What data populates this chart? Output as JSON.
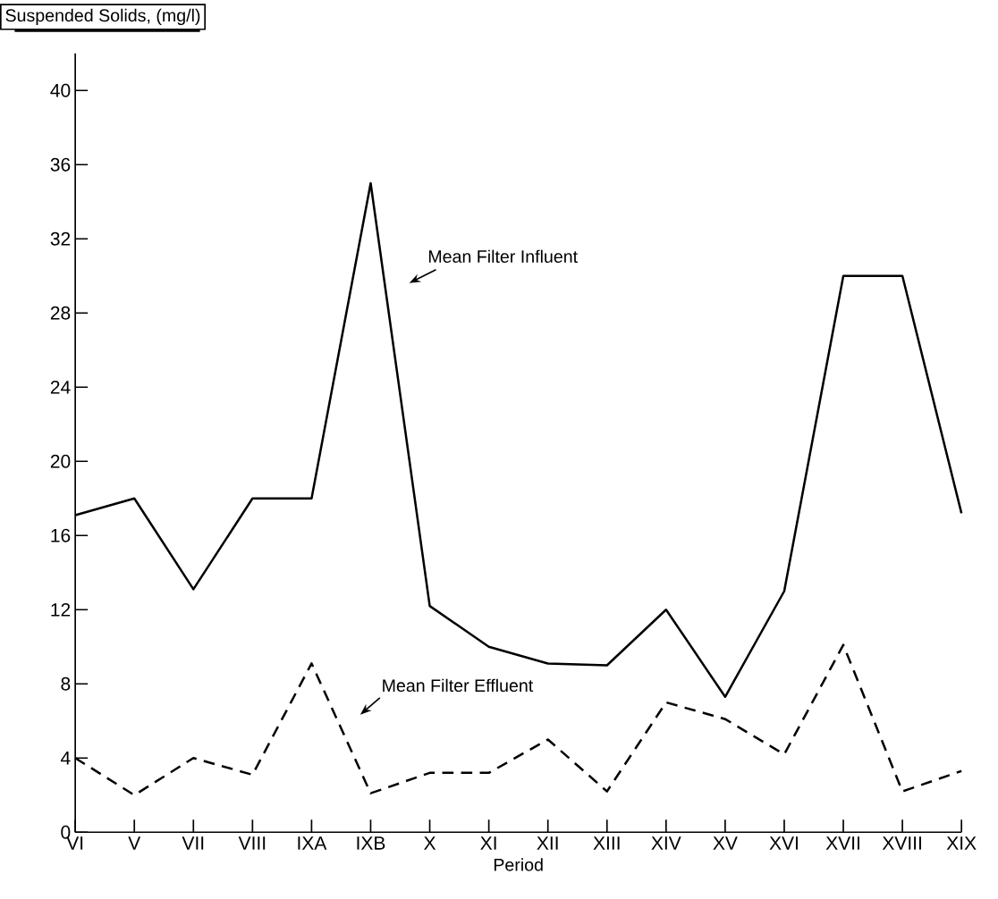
{
  "chart_data": {
    "type": "line",
    "ylabel": "Suspended Solids, (mg/l)",
    "xlabel": "Period",
    "categories": [
      "VI",
      "V",
      "VII",
      "VIII",
      "IXA",
      "IXB",
      "X",
      "XI",
      "XII",
      "XIII",
      "XIV",
      "XV",
      "XVI",
      "XVII",
      "XVIII",
      "XIX"
    ],
    "series": [
      {
        "color": "#000000",
        "line_style": "solid",
        "values": [
          17.1,
          18,
          13.1,
          18,
          18,
          35,
          12.2,
          10,
          9.1,
          9,
          12,
          7.3,
          13,
          30,
          30,
          17.2
        ]
      },
      {
        "color": "#000000",
        "line_style": "dashed",
        "values": [
          4,
          2,
          4,
          3.1,
          9.1,
          2.1,
          3.2,
          3.2,
          5,
          2.2,
          7,
          6.1,
          4.2,
          10.1,
          2.2,
          3.3
        ]
      }
    ],
    "ylim": [
      0,
      42
    ],
    "yticks": [
      0,
      4,
      8,
      12,
      16,
      20,
      24,
      28,
      32,
      36,
      40
    ],
    "annotations": [
      "Mean Filter Influent",
      "Mean Filter Effluent"
    ],
    "marker": "none"
  }
}
